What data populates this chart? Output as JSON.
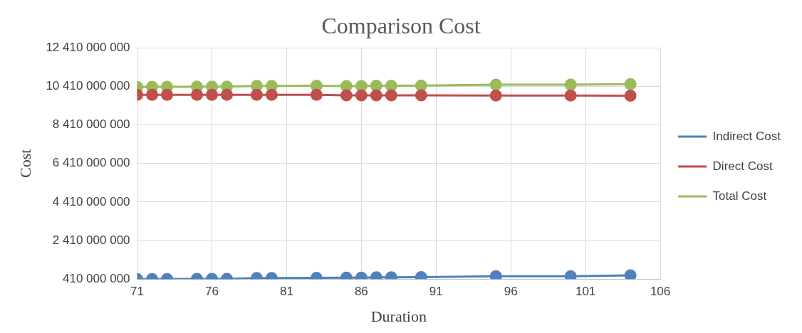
{
  "chart_data": {
    "type": "line",
    "title": "Comparison Cost",
    "xlabel": "Duration",
    "ylabel": "Cost",
    "x": [
      71,
      72,
      73,
      75,
      76,
      77,
      79,
      80,
      83,
      85,
      86,
      87,
      88,
      90,
      95,
      100,
      104
    ],
    "series": [
      {
        "name": "Indirect Cost",
        "color": "#4f81bd",
        "values": [
          410000000,
          410000000,
          410000000,
          420000000,
          420000000,
          420000000,
          460000000,
          460000000,
          470000000,
          480000000,
          480000000,
          500000000,
          500000000,
          510000000,
          560000000,
          560000000,
          600000000
        ]
      },
      {
        "name": "Direct Cost",
        "color": "#c0504d",
        "values": [
          9980000000,
          9980000000,
          9980000000,
          9980000000,
          9980000000,
          9980000000,
          9980000000,
          9980000000,
          9980000000,
          9950000000,
          9950000000,
          9950000000,
          9950000000,
          9950000000,
          9940000000,
          9940000000,
          9930000000
        ]
      },
      {
        "name": "Total Cost",
        "color": "#9bbb59",
        "values": [
          10380000000,
          10390000000,
          10390000000,
          10400000000,
          10400000000,
          10400000000,
          10440000000,
          10440000000,
          10450000000,
          10430000000,
          10430000000,
          10450000000,
          10450000000,
          10460000000,
          10500000000,
          10500000000,
          10530000000
        ]
      }
    ],
    "xlim": [
      71,
      106
    ],
    "xticks": [
      71,
      76,
      81,
      86,
      91,
      96,
      101,
      106
    ],
    "ylim": [
      410000000,
      12410000000
    ],
    "yticks": [
      {
        "value": 410000000,
        "label": "410 000 000"
      },
      {
        "value": 2410000000,
        "label": "2 410 000 000"
      },
      {
        "value": 4410000000,
        "label": "4 410 000 000"
      },
      {
        "value": 6410000000,
        "label": "6 410 000 000"
      },
      {
        "value": 8410000000,
        "label": "8 410 000 000"
      },
      {
        "value": 10410000000,
        "label": "10 410 000 000"
      },
      {
        "value": 12410000000,
        "label": "12 410 000 000"
      }
    ],
    "grid": true,
    "legend": "right",
    "marker": "circle",
    "line_style": "solid"
  }
}
